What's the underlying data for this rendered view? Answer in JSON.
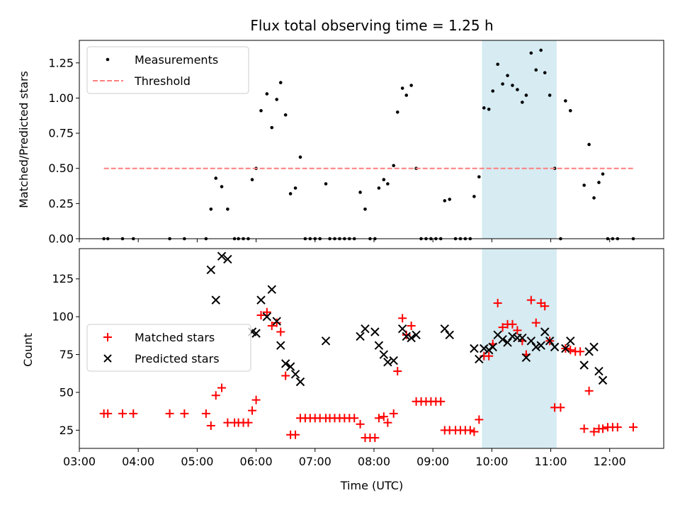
{
  "chart_data": [
    {
      "type": "scatter",
      "title": "Flux total observing time = 1.25 h",
      "xlabel": "",
      "ylabel": "Matched/Predicted stars",
      "xlim": [
        "03:00",
        "12:55"
      ],
      "ylim": [
        0,
        1.41
      ],
      "yticks": [
        "0.00",
        "0.25",
        "0.50",
        "0.75",
        "1.00",
        "1.25"
      ],
      "legend_position": "top-left",
      "highlight_span": {
        "start": "09:50",
        "end": "11:06"
      },
      "series": [
        {
          "name": "Measurements",
          "color": "#000000",
          "marker": "dot",
          "points": [
            [
              "03:25",
              0
            ],
            [
              "03:29",
              0
            ],
            [
              "03:44",
              0
            ],
            [
              "03:55",
              0
            ],
            [
              "04:32",
              0
            ],
            [
              "04:47",
              0
            ],
            [
              "05:09",
              0
            ],
            [
              "05:14",
              0.21
            ],
            [
              "05:19",
              0.43
            ],
            [
              "05:25",
              0.37
            ],
            [
              "05:31",
              0.21
            ],
            [
              "05:38",
              0
            ],
            [
              "05:42",
              0
            ],
            [
              "05:47",
              0
            ],
            [
              "05:52",
              0
            ],
            [
              "05:56",
              0.42
            ],
            [
              "06:00",
              0.5
            ],
            [
              "06:05",
              0.91
            ],
            [
              "06:11",
              1.03
            ],
            [
              "06:16",
              0.79
            ],
            [
              "06:21",
              0.99
            ],
            [
              "06:25",
              1.11
            ],
            [
              "06:30",
              0.88
            ],
            [
              "06:35",
              0.32
            ],
            [
              "06:40",
              0.36
            ],
            [
              "06:45",
              0.58
            ],
            [
              "06:50",
              0
            ],
            [
              "06:55",
              0
            ],
            [
              "07:00",
              0
            ],
            [
              "07:05",
              0
            ],
            [
              "07:11",
              0.39
            ],
            [
              "07:15",
              0
            ],
            [
              "07:20",
              0
            ],
            [
              "07:25",
              0
            ],
            [
              "07:30",
              0
            ],
            [
              "07:35",
              0
            ],
            [
              "07:40",
              0
            ],
            [
              "07:46",
              0.33
            ],
            [
              "07:51",
              0.21
            ],
            [
              "07:56",
              0
            ],
            [
              "08:01",
              0
            ],
            [
              "08:05",
              0.36
            ],
            [
              "08:10",
              0.42
            ],
            [
              "08:14",
              0.39
            ],
            [
              "08:20",
              0.52
            ],
            [
              "08:24",
              0.9
            ],
            [
              "08:29",
              1.07
            ],
            [
              "08:33",
              1.02
            ],
            [
              "08:38",
              1.09
            ],
            [
              "08:43",
              0.5
            ],
            [
              "08:48",
              0
            ],
            [
              "08:53",
              0
            ],
            [
              "08:58",
              0
            ],
            [
              "09:03",
              0
            ],
            [
              "09:08",
              0
            ],
            [
              "09:12",
              0.27
            ],
            [
              "09:17",
              0.28
            ],
            [
              "09:23",
              0
            ],
            [
              "09:28",
              0
            ],
            [
              "09:33",
              0
            ],
            [
              "09:38",
              0
            ],
            [
              "09:42",
              0.3
            ],
            [
              "09:47",
              0.44
            ],
            [
              "09:52",
              0.93
            ],
            [
              "09:57",
              0.92
            ],
            [
              "10:01",
              1.05
            ],
            [
              "10:06",
              1.24
            ],
            [
              "10:11",
              1.1
            ],
            [
              "10:16",
              1.16
            ],
            [
              "10:21",
              1.09
            ],
            [
              "10:26",
              1.06
            ],
            [
              "10:31",
              0.97
            ],
            [
              "10:35",
              1.02
            ],
            [
              "10:40",
              1.32
            ],
            [
              "10:45",
              1.2
            ],
            [
              "10:50",
              1.34
            ],
            [
              "10:54",
              1.18
            ],
            [
              "10:59",
              1.02
            ],
            [
              "11:04",
              0.5
            ],
            [
              "11:10",
              0
            ],
            [
              "11:15",
              0.98
            ],
            [
              "11:20",
              0.91
            ],
            [
              "11:34",
              0.38
            ],
            [
              "11:39",
              0.67
            ],
            [
              "11:44",
              0.29
            ],
            [
              "11:49",
              0.4
            ],
            [
              "11:53",
              0.46
            ],
            [
              "11:58",
              0
            ],
            [
              "12:03",
              0
            ],
            [
              "12:08",
              0
            ],
            [
              "12:24",
              0
            ]
          ]
        },
        {
          "name": "Threshold",
          "color": "#ff7f7f",
          "marker": "dashed-line",
          "points": [
            [
              "03:25",
              0.5
            ],
            [
              "12:25",
              0.5
            ]
          ]
        }
      ]
    },
    {
      "type": "scatter",
      "title": "",
      "xlabel": "Time (UTC)",
      "ylabel": "Count",
      "xlim": [
        "03:00",
        "12:55"
      ],
      "ylim": [
        13,
        145
      ],
      "yticks": [
        "25",
        "50",
        "75",
        "100",
        "125"
      ],
      "xticks": [
        "03:00",
        "04:00",
        "05:00",
        "06:00",
        "07:00",
        "08:00",
        "09:00",
        "10:00",
        "11:00",
        "12:00"
      ],
      "legend_position": "center-left",
      "highlight_span": {
        "start": "09:50",
        "end": "11:06"
      },
      "series": [
        {
          "name": "Matched stars",
          "color": "#ff0000",
          "marker": "plus",
          "points": [
            [
              "03:25",
              36
            ],
            [
              "03:29",
              36
            ],
            [
              "03:44",
              36
            ],
            [
              "03:55",
              36
            ],
            [
              "04:32",
              36
            ],
            [
              "04:47",
              36
            ],
            [
              "05:09",
              36
            ],
            [
              "05:14",
              28
            ],
            [
              "05:19",
              48
            ],
            [
              "05:25",
              53
            ],
            [
              "05:31",
              30
            ],
            [
              "05:38",
              30
            ],
            [
              "05:42",
              30
            ],
            [
              "05:47",
              30
            ],
            [
              "05:52",
              30
            ],
            [
              "05:56",
              38
            ],
            [
              "06:00",
              45
            ],
            [
              "06:05",
              101
            ],
            [
              "06:11",
              103
            ],
            [
              "06:16",
              94
            ],
            [
              "06:21",
              96
            ],
            [
              "06:25",
              90
            ],
            [
              "06:30",
              61
            ],
            [
              "06:35",
              22
            ],
            [
              "06:40",
              22
            ],
            [
              "06:45",
              33
            ],
            [
              "06:50",
              33
            ],
            [
              "06:55",
              33
            ],
            [
              "07:00",
              33
            ],
            [
              "07:05",
              33
            ],
            [
              "07:11",
              33
            ],
            [
              "07:15",
              33
            ],
            [
              "07:20",
              33
            ],
            [
              "07:25",
              33
            ],
            [
              "07:30",
              33
            ],
            [
              "07:35",
              33
            ],
            [
              "07:40",
              33
            ],
            [
              "07:46",
              29
            ],
            [
              "07:51",
              20
            ],
            [
              "07:56",
              20
            ],
            [
              "08:01",
              20
            ],
            [
              "08:05",
              33
            ],
            [
              "08:10",
              34
            ],
            [
              "08:14",
              30
            ],
            [
              "08:20",
              36
            ],
            [
              "08:24",
              64
            ],
            [
              "08:29",
              99
            ],
            [
              "08:33",
              88
            ],
            [
              "08:38",
              94
            ],
            [
              "08:43",
              44
            ],
            [
              "08:48",
              44
            ],
            [
              "08:53",
              44
            ],
            [
              "08:58",
              44
            ],
            [
              "09:03",
              44
            ],
            [
              "09:08",
              44
            ],
            [
              "09:12",
              25
            ],
            [
              "09:17",
              25
            ],
            [
              "09:23",
              25
            ],
            [
              "09:28",
              25
            ],
            [
              "09:33",
              25
            ],
            [
              "09:38",
              25
            ],
            [
              "09:42",
              24
            ],
            [
              "09:47",
              32
            ],
            [
              "09:52",
              74
            ],
            [
              "09:57",
              74
            ],
            [
              "10:01",
              82
            ],
            [
              "10:06",
              109
            ],
            [
              "10:11",
              93
            ],
            [
              "10:16",
              95
            ],
            [
              "10:21",
              95
            ],
            [
              "10:26",
              91
            ],
            [
              "10:31",
              84
            ],
            [
              "10:35",
              75
            ],
            [
              "10:40",
              111
            ],
            [
              "10:45",
              96
            ],
            [
              "10:50",
              109
            ],
            [
              "10:54",
              107
            ],
            [
              "10:59",
              84
            ],
            [
              "11:04",
              40
            ],
            [
              "11:10",
              40
            ],
            [
              "11:15",
              79
            ],
            [
              "11:20",
              78
            ],
            [
              "11:25",
              77
            ],
            [
              "11:30",
              77
            ],
            [
              "11:34",
              26
            ],
            [
              "11:39",
              51
            ],
            [
              "11:44",
              24
            ],
            [
              "11:49",
              26
            ],
            [
              "11:53",
              26
            ],
            [
              "11:58",
              27
            ],
            [
              "12:03",
              27
            ],
            [
              "12:08",
              27
            ],
            [
              "12:24",
              27
            ]
          ]
        },
        {
          "name": "Predicted stars",
          "color": "#000000",
          "marker": "x",
          "points": [
            [
              "05:14",
              131
            ],
            [
              "05:19",
              111
            ],
            [
              "05:25",
              140
            ],
            [
              "05:31",
              138
            ],
            [
              "05:56",
              90
            ],
            [
              "06:00",
              89
            ],
            [
              "06:05",
              111
            ],
            [
              "06:11",
              100
            ],
            [
              "06:16",
              118
            ],
            [
              "06:21",
              97
            ],
            [
              "06:25",
              81
            ],
            [
              "06:30",
              69
            ],
            [
              "06:35",
              67
            ],
            [
              "06:40",
              62
            ],
            [
              "06:45",
              57
            ],
            [
              "07:11",
              84
            ],
            [
              "07:46",
              87
            ],
            [
              "07:51",
              92
            ],
            [
              "08:01",
              90
            ],
            [
              "08:05",
              81
            ],
            [
              "08:10",
              75
            ],
            [
              "08:14",
              70
            ],
            [
              "08:20",
              71
            ],
            [
              "08:29",
              92
            ],
            [
              "08:33",
              87
            ],
            [
              "08:38",
              86
            ],
            [
              "08:43",
              88
            ],
            [
              "09:12",
              92
            ],
            [
              "09:17",
              88
            ],
            [
              "09:42",
              79
            ],
            [
              "09:47",
              72
            ],
            [
              "09:52",
              79
            ],
            [
              "09:57",
              78
            ],
            [
              "10:01",
              80
            ],
            [
              "10:06",
              88
            ],
            [
              "10:11",
              85
            ],
            [
              "10:16",
              83
            ],
            [
              "10:21",
              87
            ],
            [
              "10:26",
              86
            ],
            [
              "10:31",
              86
            ],
            [
              "10:35",
              73
            ],
            [
              "10:40",
              84
            ],
            [
              "10:45",
              80
            ],
            [
              "10:50",
              81
            ],
            [
              "10:54",
              90
            ],
            [
              "10:59",
              84
            ],
            [
              "11:04",
              80
            ],
            [
              "11:15",
              79
            ],
            [
              "11:20",
              84
            ],
            [
              "11:34",
              68
            ],
            [
              "11:39",
              77
            ],
            [
              "11:44",
              80
            ],
            [
              "11:49",
              64
            ],
            [
              "11:53",
              58
            ]
          ]
        }
      ]
    }
  ]
}
